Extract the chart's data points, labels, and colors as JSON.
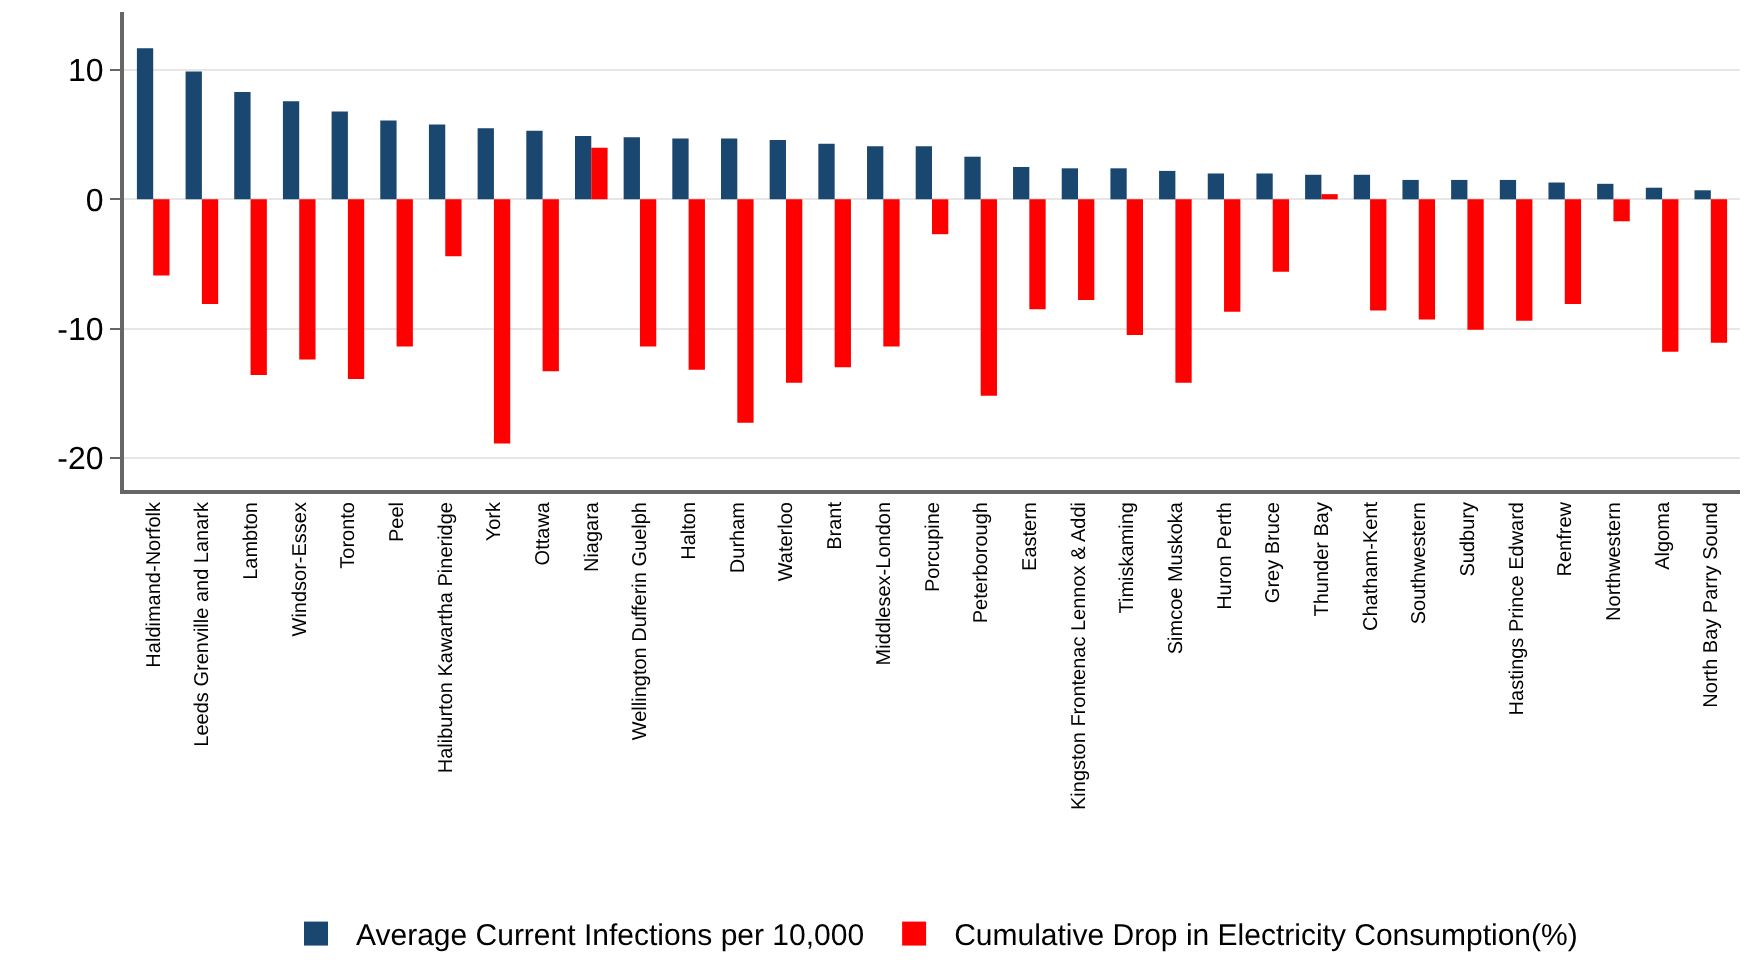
{
  "chart_data": {
    "type": "bar",
    "categories": [
      "Haldimand-Norfolk",
      "Leeds Grenville and Lanark",
      "Lambton",
      "Windsor-Essex",
      "Toronto",
      "Peel",
      "Haliburton Kawartha Pineridge",
      "York",
      "Ottawa",
      "Niagara",
      "Wellington Dufferin Guelph",
      "Halton",
      "Durham",
      "Waterloo",
      "Brant",
      "Middlesex-London",
      "Porcupine",
      "Peterborough",
      "Eastern",
      "Kingston Frontenac Lennox & Addi",
      "Timiskaming",
      "Simcoe Muskoka",
      "Huron Perth",
      "Grey Bruce",
      "Thunder Bay",
      "Chatham-Kent",
      "Southwestern",
      "Sudbury",
      "Hastings Prince Edward",
      "Renfrew",
      "Northwestern",
      "Algoma",
      "North Bay Parry Sound"
    ],
    "series": [
      {
        "name": "Average Current Infections per 10,000",
        "color": "#1a476f",
        "values": [
          11.7,
          9.9,
          8.3,
          7.6,
          6.8,
          6.1,
          5.8,
          5.5,
          5.3,
          4.9,
          4.8,
          4.7,
          4.7,
          4.6,
          4.3,
          4.1,
          4.1,
          3.3,
          2.5,
          2.4,
          2.4,
          2.2,
          2.0,
          2.0,
          1.9,
          1.9,
          1.5,
          1.5,
          1.5,
          1.3,
          1.2,
          0.9,
          0.7
        ]
      },
      {
        "name": "Cumulative Drop in Electricity Consumption(%)",
        "color": "#ff0000",
        "values": [
          -5.9,
          -8.1,
          -13.6,
          -12.4,
          -13.9,
          -11.4,
          -4.4,
          -18.9,
          -13.3,
          4.0,
          -11.4,
          -13.2,
          -17.3,
          -14.2,
          -13.0,
          -11.4,
          -2.7,
          -15.2,
          -8.5,
          -7.8,
          -10.5,
          -14.2,
          -8.7,
          -5.6,
          0.4,
          -8.6,
          -9.3,
          -10.1,
          -9.4,
          -8.1,
          -1.7,
          -11.8,
          -11.1
        ]
      }
    ],
    "ylim": [
      -22.5,
      14.5
    ],
    "yticks": [
      -20,
      -10,
      0,
      10
    ],
    "grid": "y",
    "legend": "bottom"
  }
}
